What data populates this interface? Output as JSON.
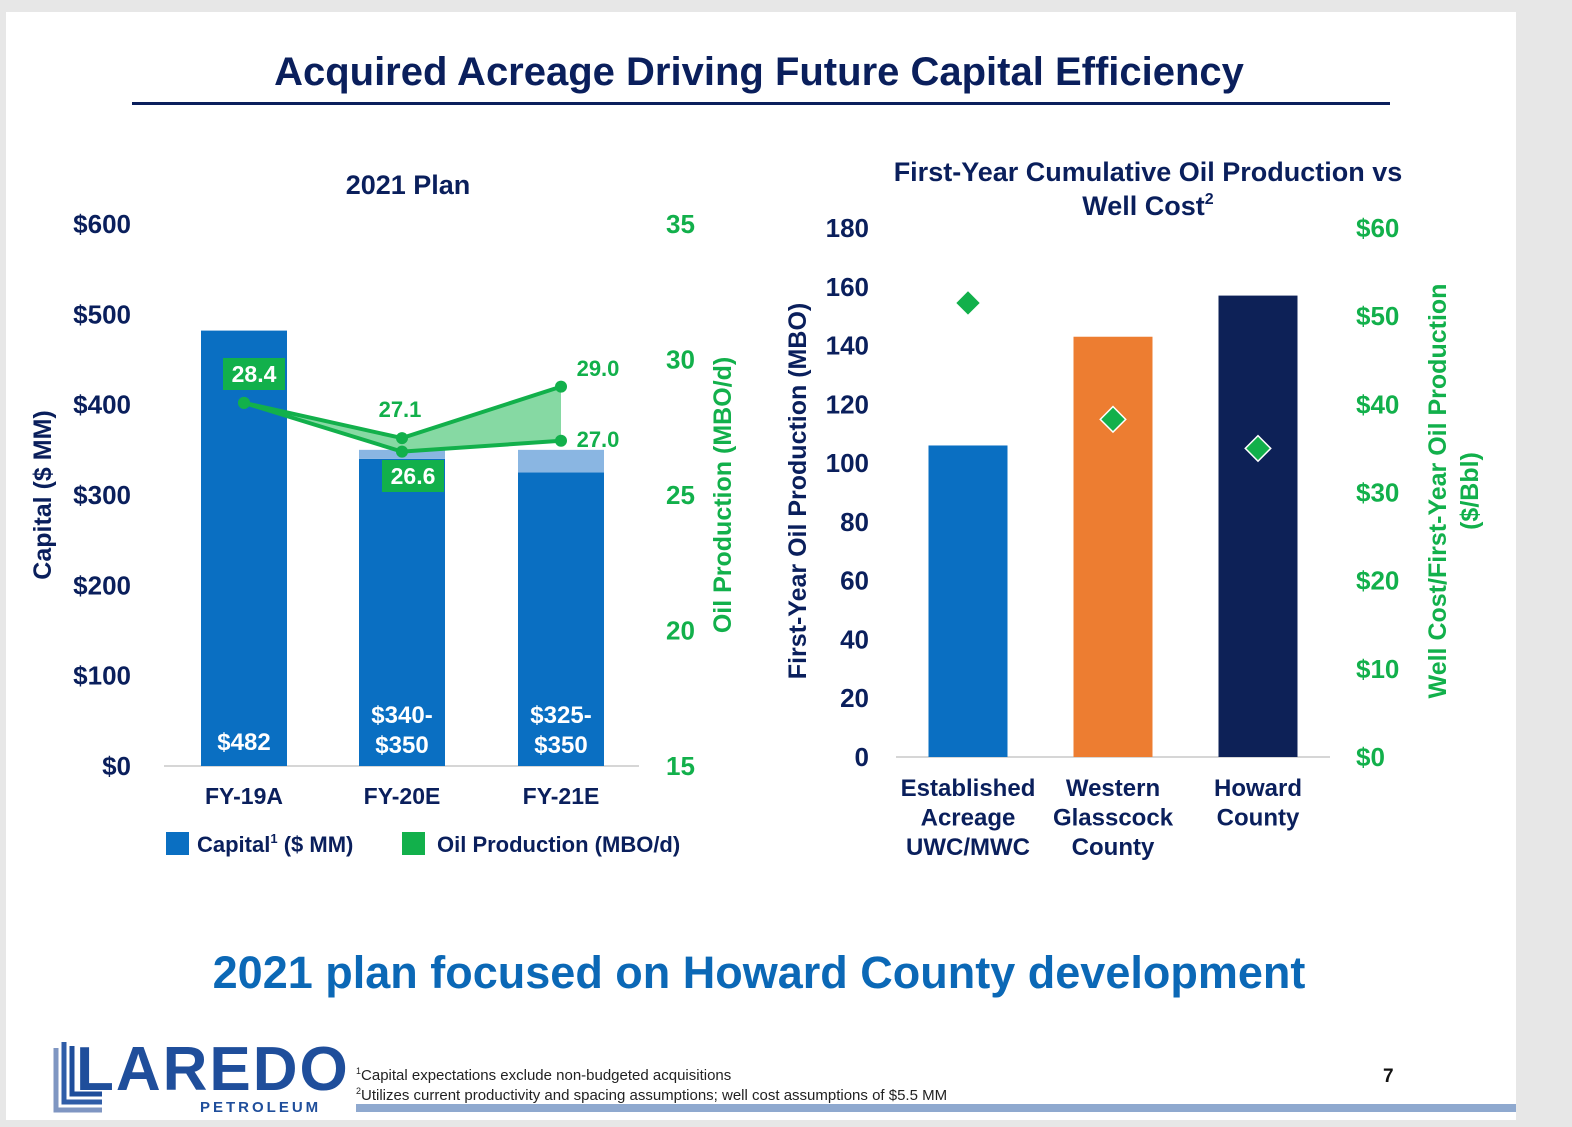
{
  "page": {
    "title": "Acquired Acreage Driving Future Capital Efficiency",
    "tagline": "2021 plan focused on Howard County development",
    "footnote1": "Capital expectations exclude non-budgeted acquisitions",
    "footnote2": "Utilizes current productivity and spacing assumptions; well cost assumptions of $5.5 MM",
    "footnote1_marker": "1",
    "footnote2_marker": "2",
    "page_number": "7",
    "logo_text": "LAREDO",
    "logo_subtext": "PETROLEUM"
  },
  "colors": {
    "navy": "#0a1f5c",
    "blue": "#0a6fc2",
    "light_blue": "#8ab6e2",
    "green": "#12b04b",
    "green_fill": "#86d9a3",
    "orange": "#ed7d31",
    "dark_navy": "#0d2157"
  },
  "chart_data": [
    {
      "type": "bar",
      "title": "2021 Plan",
      "categories": [
        "FY-19A",
        "FY-20E",
        "FY-21E"
      ],
      "ylabel": "Capital ($ MM)",
      "y2label": "Oil Production (MBO/d)",
      "ylim": [
        0,
        600
      ],
      "y_ticks": [
        "$0",
        "$100",
        "$200",
        "$300",
        "$400",
        "$500",
        "$600"
      ],
      "y2lim": [
        15,
        35
      ],
      "y2_ticks": [
        "15",
        "20",
        "25",
        "30",
        "35"
      ],
      "series": [
        {
          "name": "Capital",
          "name_marker": "1",
          "name_suffix": " ($ MM)",
          "kind": "bar",
          "low": [
            482,
            340,
            325
          ],
          "high": [
            482,
            350,
            350
          ],
          "labels": [
            [
              "$482"
            ],
            [
              "$340-",
              "$350"
            ],
            [
              "$325-",
              "$350"
            ]
          ]
        },
        {
          "name": "Oil Production (MBO/d)",
          "kind": "line",
          "axis": "right",
          "high": [
            28.4,
            27.1,
            29.0
          ],
          "low": [
            28.4,
            26.6,
            27.0
          ],
          "high_labels": [
            "28.4",
            "27.1",
            "29.0"
          ],
          "low_labels": [
            "",
            "26.6",
            "27.0"
          ]
        }
      ],
      "legend": "bottom"
    },
    {
      "type": "bar",
      "title_line1": "First-Year Cumulative Oil Production vs",
      "title_line2": "Well Cost",
      "title_marker": "2",
      "categories": [
        [
          "Established",
          "Acreage",
          "UWC/MWC"
        ],
        [
          "Western",
          "Glasscock",
          "County"
        ],
        [
          "Howard",
          "County"
        ]
      ],
      "ylabel": "First-Year Oil Production (MBO)",
      "y2label_line1": "Well Cost/First-Year Oil Production",
      "y2label_line2": "($/Bbl)",
      "ylim": [
        0,
        180
      ],
      "y_ticks": [
        "0",
        "20",
        "40",
        "60",
        "80",
        "100",
        "120",
        "140",
        "160",
        "180"
      ],
      "y2lim": [
        0,
        60
      ],
      "y2_ticks": [
        "$0",
        "$10",
        "$20",
        "$30",
        "$40",
        "$50",
        "$60"
      ],
      "series": [
        {
          "kind": "bar",
          "values": [
            106,
            143,
            157
          ]
        },
        {
          "kind": "scatter",
          "axis": "right",
          "values": [
            51.5,
            38.3,
            35.0
          ]
        }
      ]
    }
  ]
}
